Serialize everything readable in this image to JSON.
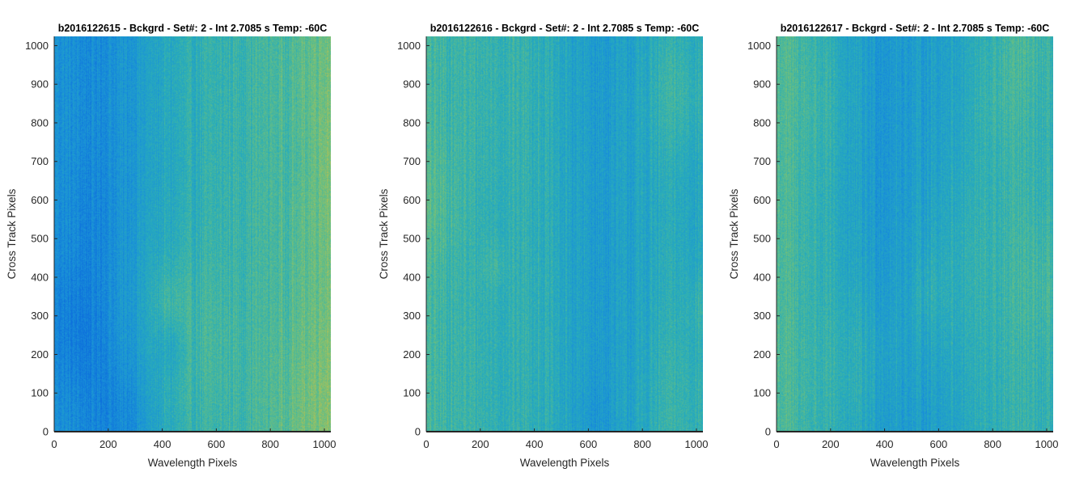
{
  "figure": {
    "background": "#ffffff",
    "colormap": "parula",
    "colormap_range_colors": [
      "#0d6edc",
      "#1a92d8",
      "#2aaeb8",
      "#6abf80",
      "#c8c048"
    ]
  },
  "chart_data": [
    {
      "type": "heatmap",
      "title": "b2016122615 - Bckgrd - Set#: 2 - Int 2.7085 s Temp: -60C",
      "xlabel": "Wavelength Pixels",
      "ylabel": "Cross Track Pixels",
      "xlim": [
        0,
        1024
      ],
      "ylim": [
        0,
        1024
      ],
      "xticks": [
        "0",
        "200",
        "400",
        "600",
        "800",
        "1000"
      ],
      "yticks": [
        "0",
        "100",
        "200",
        "300",
        "400",
        "500",
        "600",
        "700",
        "800",
        "900",
        "1000"
      ],
      "column_profile": {
        "x": [
          0,
          128,
          256,
          384,
          512,
          640,
          768,
          896,
          1024
        ],
        "relative_intensity": [
          0.28,
          0.2,
          0.28,
          0.42,
          0.5,
          0.55,
          0.6,
          0.66,
          0.8
        ]
      },
      "noise_amplitude": 0.22
    },
    {
      "type": "heatmap",
      "title": "b2016122616 - Bckgrd - Set#: 2 - Int 2.7085 s Temp: -60C",
      "xlabel": "Wavelength Pixels",
      "ylabel": "Cross Track Pixels",
      "xlim": [
        0,
        1024
      ],
      "ylim": [
        0,
        1024
      ],
      "xticks": [
        "0",
        "200",
        "400",
        "600",
        "800",
        "1000"
      ],
      "yticks": [
        "0",
        "100",
        "200",
        "300",
        "400",
        "500",
        "600",
        "700",
        "800",
        "900",
        "1000"
      ],
      "column_profile": {
        "x": [
          0,
          128,
          256,
          384,
          512,
          640,
          768,
          896,
          1024
        ],
        "relative_intensity": [
          0.6,
          0.57,
          0.55,
          0.55,
          0.42,
          0.33,
          0.38,
          0.48,
          0.46
        ]
      },
      "noise_amplitude": 0.22
    },
    {
      "type": "heatmap",
      "title": "b2016122617 - Bckgrd - Set#: 2 - Int 2.7085 s Temp: -60C",
      "xlabel": "Wavelength Pixels",
      "ylabel": "Cross Track Pixels",
      "xlim": [
        0,
        1024
      ],
      "ylim": [
        0,
        1024
      ],
      "xticks": [
        "0",
        "200",
        "400",
        "600",
        "800",
        "1000"
      ],
      "yticks": [
        "0",
        "100",
        "200",
        "300",
        "400",
        "500",
        "600",
        "700",
        "800",
        "900",
        "1000"
      ],
      "column_profile": {
        "x": [
          0,
          128,
          256,
          384,
          512,
          640,
          768,
          896,
          1024
        ],
        "relative_intensity": [
          0.66,
          0.55,
          0.42,
          0.32,
          0.34,
          0.4,
          0.48,
          0.55,
          0.5
        ]
      },
      "noise_amplitude": 0.22
    }
  ]
}
